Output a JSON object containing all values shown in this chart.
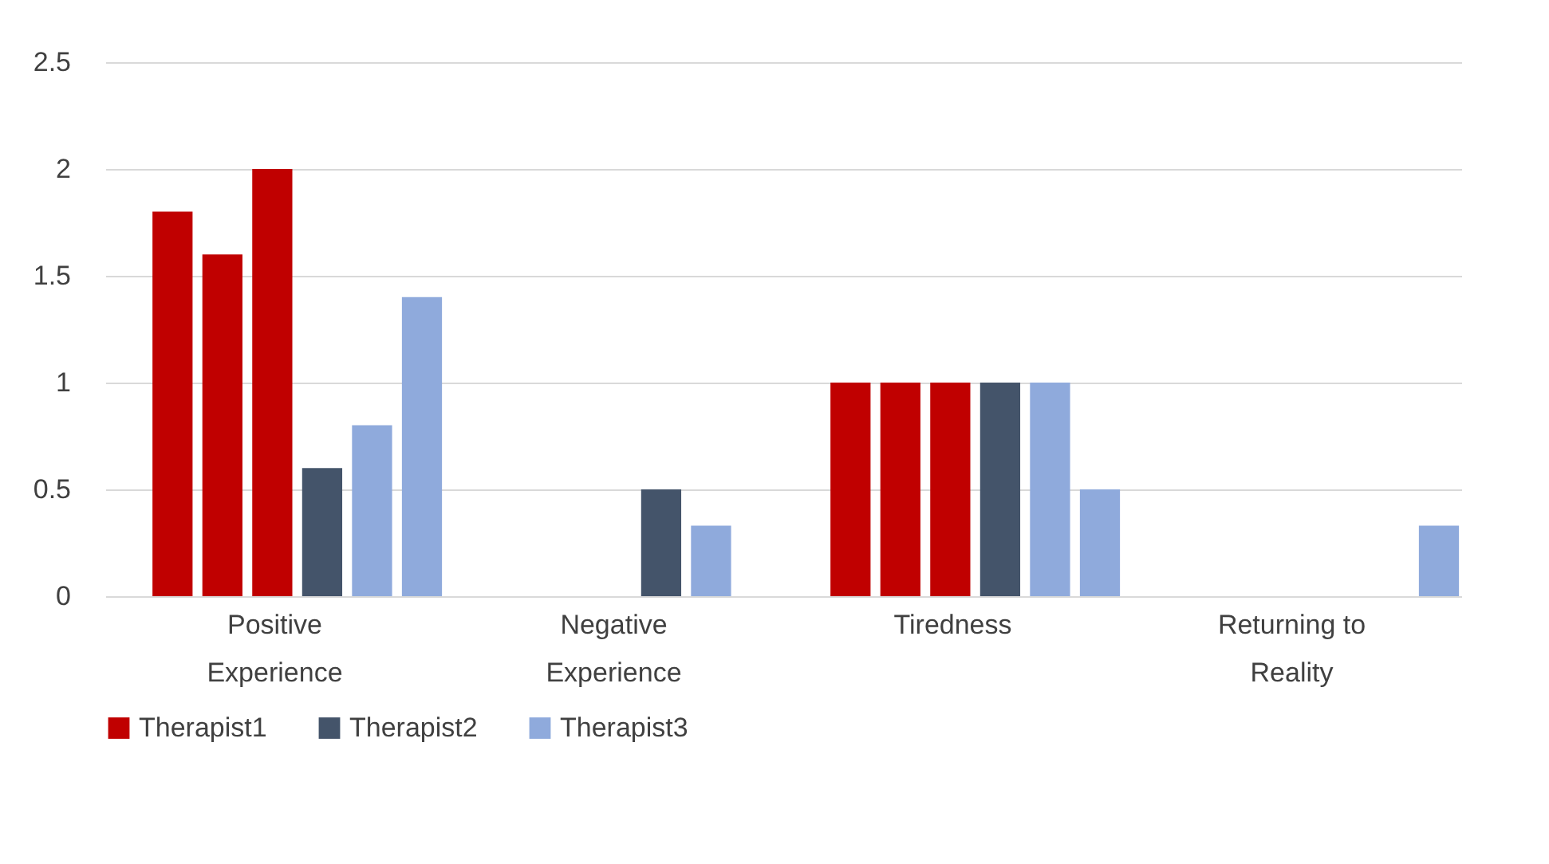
{
  "chart_data": {
    "type": "bar",
    "categories": [
      "Positive Experience",
      "Negative Experience",
      "Tiredness",
      "Returning to Reality"
    ],
    "series": [
      {
        "name": "Therapist1",
        "color": "#c00000",
        "values": [
          1.8,
          0,
          1,
          0
        ]
      },
      {
        "color": "#c00000",
        "values": [
          1.6,
          0,
          1,
          0
        ]
      },
      {
        "color": "#c00000",
        "values": [
          2,
          0,
          1,
          0
        ]
      },
      {
        "name": "Therapist2",
        "color": "#44546a",
        "values": [
          0.6,
          0.5,
          1,
          0
        ]
      },
      {
        "name": "Therapist3",
        "color": "#8faadc",
        "values": [
          0.8,
          0.33,
          1,
          0
        ]
      },
      {
        "color": "#8faadc",
        "values": [
          1.4,
          0,
          0.5,
          0.33
        ]
      }
    ],
    "ylim": [
      0,
      2.5
    ],
    "yticks": [
      0,
      0.5,
      1,
      1.5,
      2,
      2.5
    ],
    "grid": "y",
    "legend": "bottom"
  }
}
